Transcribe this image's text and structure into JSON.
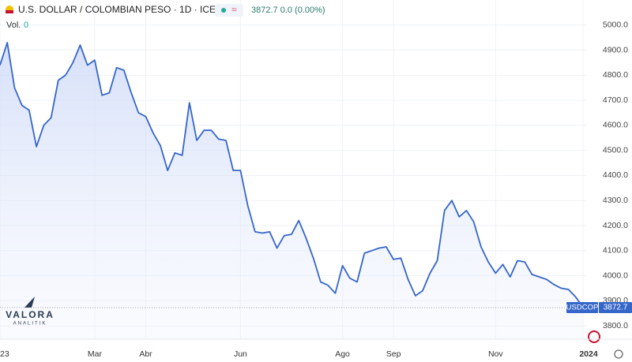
{
  "header": {
    "title": "U.S. DOLLAR / COLOMBIAN PESO · 1D · ICE",
    "quote": "3872.7 0.0 (0.00%)",
    "volume_label": "Vol.",
    "volume": "0"
  },
  "watermark": {
    "name": "VALORA",
    "sub": "ANALITIK"
  },
  "chart_data": {
    "type": "line",
    "area": true,
    "grid": true,
    "last_price": 3872.7,
    "ylim": [
      3750,
      5100
    ],
    "yticks": [
      {
        "value": 3800,
        "label": "3800.0"
      },
      {
        "value": 3900,
        "label": "3900.0"
      },
      {
        "value": 4000,
        "label": "4000.0"
      },
      {
        "value": 4100,
        "label": "4100.0"
      },
      {
        "value": 4200,
        "label": "4200.0"
      },
      {
        "value": 4300,
        "label": "4300.0"
      },
      {
        "value": 4400,
        "label": "4400.0"
      },
      {
        "value": 4500,
        "label": "4500.0"
      },
      {
        "value": 4600,
        "label": "4600.0"
      },
      {
        "value": 4700,
        "label": "4700.0"
      },
      {
        "value": 4800,
        "label": "4800.0"
      },
      {
        "value": 4900,
        "label": "4900.0"
      },
      {
        "value": 5000,
        "label": "5000.0"
      }
    ],
    "categories": [
      "23",
      null,
      null,
      null,
      null,
      null,
      null,
      null,
      null,
      null,
      null,
      null,
      null,
      "Mar",
      null,
      null,
      null,
      null,
      null,
      null,
      "Abr",
      null,
      null,
      null,
      null,
      null,
      null,
      null,
      null,
      null,
      null,
      null,
      null,
      "Jun",
      null,
      null,
      null,
      null,
      null,
      null,
      null,
      null,
      null,
      null,
      null,
      null,
      null,
      "Ago",
      null,
      null,
      null,
      null,
      null,
      null,
      "Sep",
      null,
      null,
      null,
      null,
      null,
      null,
      null,
      null,
      null,
      null,
      null,
      null,
      null,
      "Nov",
      null,
      null,
      null,
      null,
      null,
      null,
      null,
      null,
      null,
      null,
      null,
      "2024"
    ],
    "series": [
      {
        "name": "USDCOP",
        "color": "#3566c9",
        "values": [
          4840,
          4930,
          4750,
          4680,
          4660,
          4515,
          4600,
          4630,
          4780,
          4800,
          4850,
          4920,
          4840,
          4860,
          4720,
          4730,
          4830,
          4820,
          4730,
          4650,
          4635,
          4570,
          4520,
          4420,
          4490,
          4480,
          4690,
          4540,
          4580,
          4580,
          4545,
          4540,
          4420,
          4420,
          4280,
          4175,
          4170,
          4175,
          4110,
          4160,
          4165,
          4220,
          4150,
          4070,
          3975,
          3962,
          3930,
          4040,
          3990,
          3975,
          4090,
          4100,
          4110,
          4115,
          4065,
          4070,
          3985,
          3920,
          3940,
          4010,
          4060,
          4260,
          4300,
          4235,
          4260,
          4215,
          4115,
          4055,
          4010,
          4045,
          3995,
          4060,
          4055,
          4005,
          3995,
          3985,
          3965,
          3950,
          3945,
          3915,
          3873
        ]
      }
    ]
  }
}
